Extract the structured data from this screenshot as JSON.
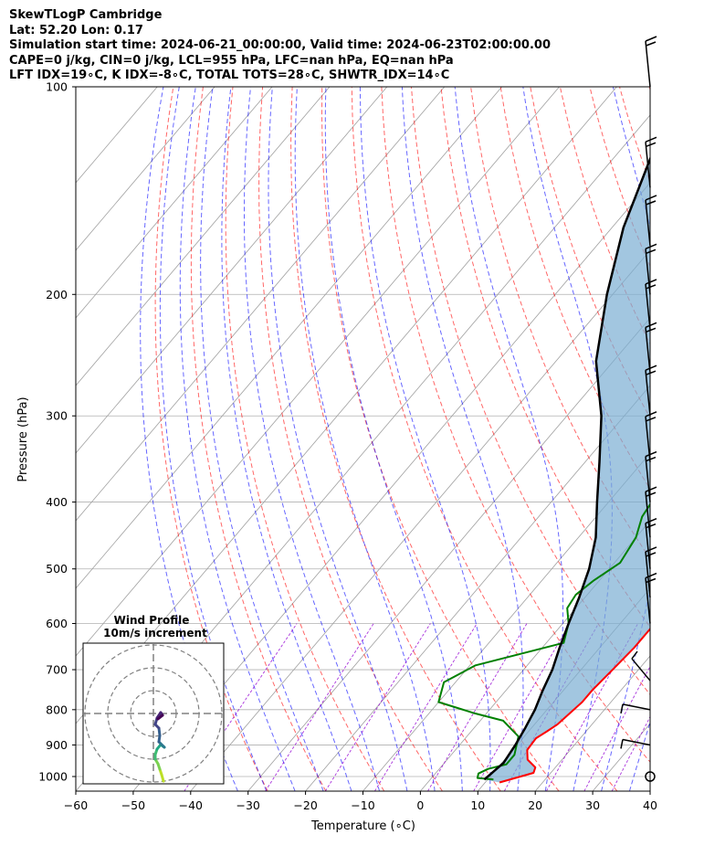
{
  "header": {
    "lines": [
      "SkewTLogP Cambridge",
      "Lat: 52.20   Lon: 0.17",
      "Simulation start time: 2024-06-21_00:00:00, Valid time: 2024-06-23T02:00:00.00",
      "CAPE=0 j/kg, CIN=0 j/kg, LCL=955 hPa, LFC=nan hPa, EQ=nan hPa",
      "LFT IDX=19∘C, K IDX=-8∘C, TOTAL TOTS=28∘C, SHWTR_IDX=14∘C"
    ]
  },
  "colors": {
    "temperature": "#ff0000",
    "dewpoint": "#008000",
    "parcel": "#000000",
    "cape_shading": "#7aaed3",
    "dry_adiabats": "#ff0000",
    "moist_adiabats": "#0000ff",
    "mixing_ratio": "#9400d3",
    "isotherms": "#a0a0a0"
  },
  "chart_data": {
    "type": "line",
    "xlabel": "Temperature (∘C)",
    "ylabel": "Pressure (hPa)",
    "xlim": [
      -60,
      40
    ],
    "ylim": [
      1050,
      100
    ],
    "y_scale": "log",
    "x_ticks": [
      "−60",
      "−50",
      "−40",
      "−30",
      "−20",
      "−10",
      "0",
      "10",
      "20",
      "30",
      "40"
    ],
    "y_ticks": [
      "100",
      "200",
      "300",
      "400",
      "500",
      "600",
      "700",
      "800",
      "900",
      "1000"
    ],
    "grid": true,
    "series": [
      {
        "key": "temperature",
        "points": [
          [
            12.5,
            1020
          ],
          [
            17,
            988
          ],
          [
            16.5,
            970
          ],
          [
            14,
            945
          ],
          [
            12.5,
            915
          ],
          [
            12.3,
            880
          ],
          [
            13.2,
            860
          ],
          [
            14,
            840
          ],
          [
            14.5,
            810
          ],
          [
            15,
            780
          ],
          [
            15,
            750
          ],
          [
            15.5,
            700
          ],
          [
            16,
            650
          ],
          [
            16,
            600
          ],
          [
            15,
            560
          ],
          [
            13,
            510
          ],
          [
            10,
            470
          ],
          [
            6,
            420
          ],
          [
            3,
            380
          ],
          [
            -1,
            340
          ],
          [
            -6,
            300
          ],
          [
            -10,
            270
          ],
          [
            -13,
            245
          ],
          [
            -14.5,
            215
          ],
          [
            -14,
            198
          ],
          [
            -11,
            178
          ],
          [
            -8,
            158
          ],
          [
            -4,
            140
          ],
          [
            -2,
            127
          ],
          [
            -2,
            115
          ],
          [
            -0.5,
            108
          ],
          [
            1.5,
            100
          ]
        ]
      },
      {
        "key": "dewpoint",
        "points": [
          [
            11,
            1010
          ],
          [
            8,
            1005
          ],
          [
            7.5,
            990
          ],
          [
            8.5,
            975
          ],
          [
            11,
            960
          ],
          [
            11,
            930
          ],
          [
            9,
            875
          ],
          [
            4,
            830
          ],
          [
            -2,
            810
          ],
          [
            -10,
            780
          ],
          [
            -12,
            730
          ],
          [
            -9,
            690
          ],
          [
            3,
            640
          ],
          [
            1,
            600
          ],
          [
            -1.5,
            570
          ],
          [
            -2,
            545
          ],
          [
            -1,
            520
          ],
          [
            1,
            490
          ],
          [
            0,
            450
          ],
          [
            -2,
            420
          ],
          [
            -3,
            380
          ],
          [
            -2,
            350
          ],
          [
            -2,
            330
          ],
          [
            -4,
            310
          ],
          [
            -6,
            285
          ],
          [
            -5.5,
            260
          ],
          [
            -6,
            230
          ],
          [
            -5,
            215
          ],
          [
            -6,
            200
          ],
          [
            -8,
            180
          ],
          [
            -10,
            165
          ],
          [
            -13,
            150
          ],
          [
            -16,
            138
          ],
          [
            -18,
            128
          ],
          [
            -13,
            120
          ],
          [
            -10,
            112
          ],
          [
            -6,
            100
          ]
        ]
      },
      {
        "key": "parcel",
        "points": [
          [
            9.4,
            1010
          ],
          [
            10.3,
            955
          ],
          [
            9.7,
            900
          ],
          [
            8.9,
            850
          ],
          [
            7.9,
            800
          ],
          [
            6.4,
            750
          ],
          [
            5,
            700
          ],
          [
            3,
            650
          ],
          [
            1,
            600
          ],
          [
            -1,
            550
          ],
          [
            -3.5,
            500
          ],
          [
            -7,
            450
          ],
          [
            -12,
            400
          ],
          [
            -17.5,
            350
          ],
          [
            -24,
            300
          ],
          [
            -33,
            250
          ],
          [
            -41,
            200
          ],
          [
            -48,
            160
          ],
          [
            -53,
            130
          ],
          [
            -57,
            110
          ],
          [
            -60.5,
            100
          ]
        ]
      }
    ],
    "hodograph": {
      "title": "Wind Profile",
      "subtitle": "10m/s increment"
    }
  }
}
